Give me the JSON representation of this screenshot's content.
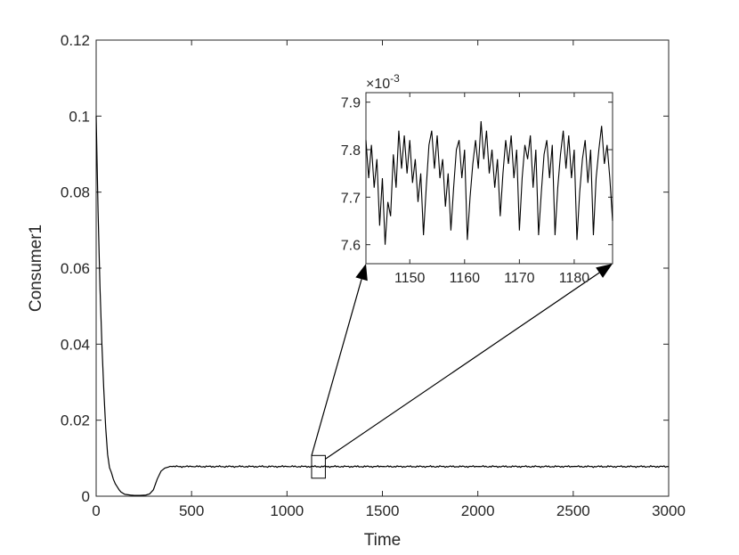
{
  "chart_data": [
    {
      "type": "line",
      "title": "",
      "xlabel": "Time",
      "ylabel": "Consumer1",
      "xlim": [
        0,
        3000
      ],
      "ylim": [
        0,
        0.12
      ],
      "xticks": [
        0,
        500,
        1000,
        1500,
        2000,
        2500,
        3000
      ],
      "xtick_labels": [
        "0",
        "500",
        "1000",
        "1500",
        "2000",
        "2500",
        "3000"
      ],
      "yticks": [
        0,
        0.02,
        0.04,
        0.06,
        0.08,
        0.1,
        0.12
      ],
      "ytick_labels": [
        "0",
        "0.02",
        "0.04",
        "0.06",
        "0.08",
        "0.1",
        "0.12"
      ],
      "grid": false,
      "legend": "none",
      "line_color": "#000000",
      "series": [
        {
          "x": [
            0,
            10,
            20,
            30,
            40,
            50,
            60,
            70,
            80,
            90,
            100,
            110,
            120,
            130,
            150,
            180,
            200,
            230,
            260,
            280,
            300,
            320,
            340,
            360,
            380,
            400,
            500,
            1000,
            1500,
            2000,
            2500,
            3000
          ],
          "y": [
            0.1,
            0.075,
            0.055,
            0.04,
            0.028,
            0.018,
            0.011,
            0.0075,
            0.0062,
            0.0045,
            0.0033,
            0.0025,
            0.0017,
            0.0011,
            0.0005,
            0.0003,
            0.0002,
            0.0002,
            0.0003,
            0.0006,
            0.0017,
            0.0045,
            0.0066,
            0.0074,
            0.0077,
            0.0078,
            0.0078,
            0.0078,
            0.0078,
            0.0078,
            0.0078,
            0.0078
          ]
        }
      ],
      "zoom_region": {
        "x": [
          1143,
          1187
        ],
        "y": [
          0.00755,
          0.0079
        ]
      }
    },
    {
      "type": "line",
      "title": "",
      "xlabel": "",
      "ylabel": "",
      "xlim": [
        1142,
        1187
      ],
      "ylim": [
        7.56,
        7.92
      ],
      "y_exponent_label": "×10",
      "y_exponent_power": "-3",
      "xticks": [
        1150,
        1160,
        1170,
        1180
      ],
      "xtick_labels": [
        "1150",
        "1160",
        "1170",
        "1180"
      ],
      "yticks": [
        7.6,
        7.7,
        7.8,
        7.9
      ],
      "ytick_labels": [
        "7.6",
        "7.7",
        "7.8",
        "7.9"
      ],
      "grid": false,
      "legend": "none",
      "line_color": "#000000",
      "series": [
        {
          "x": [
            1142,
            1142.5,
            1143,
            1143.5,
            1144,
            1144.5,
            1145,
            1145.5,
            1146,
            1146.5,
            1147,
            1147.5,
            1148,
            1148.5,
            1149,
            1149.5,
            1150,
            1150.5,
            1151,
            1151.5,
            1152,
            1152.5,
            1153,
            1153.5,
            1154,
            1154.5,
            1155,
            1155.5,
            1156,
            1156.5,
            1157,
            1157.5,
            1158,
            1158.5,
            1159,
            1159.5,
            1160,
            1160.5,
            1161,
            1161.5,
            1162,
            1162.5,
            1163,
            1163.5,
            1164,
            1164.5,
            1165,
            1165.5,
            1166,
            1166.5,
            1167,
            1167.5,
            1168,
            1168.5,
            1169,
            1169.5,
            1170,
            1170.5,
            1171,
            1171.5,
            1172,
            1172.5,
            1173,
            1173.5,
            1174,
            1174.5,
            1175,
            1175.5,
            1176,
            1176.5,
            1177,
            1177.5,
            1178,
            1178.5,
            1179,
            1179.5,
            1180,
            1180.5,
            1181,
            1181.5,
            1182,
            1182.5,
            1183,
            1183.5,
            1184,
            1184.5,
            1185,
            1185.5,
            1186,
            1186.5,
            1187
          ],
          "y": [
            7.82,
            7.74,
            7.81,
            7.72,
            7.78,
            7.64,
            7.74,
            7.6,
            7.69,
            7.66,
            7.79,
            7.72,
            7.84,
            7.76,
            7.83,
            7.75,
            7.82,
            7.73,
            7.78,
            7.69,
            7.75,
            7.62,
            7.72,
            7.81,
            7.84,
            7.76,
            7.83,
            7.74,
            7.78,
            7.68,
            7.75,
            7.63,
            7.72,
            7.8,
            7.82,
            7.74,
            7.8,
            7.61,
            7.7,
            7.77,
            7.82,
            7.76,
            7.86,
            7.78,
            7.84,
            7.75,
            7.8,
            7.72,
            7.78,
            7.66,
            7.75,
            7.82,
            7.77,
            7.83,
            7.74,
            7.8,
            7.63,
            7.74,
            7.81,
            7.78,
            7.83,
            7.72,
            7.8,
            7.62,
            7.71,
            7.79,
            7.82,
            7.74,
            7.81,
            7.62,
            7.72,
            7.79,
            7.84,
            7.76,
            7.83,
            7.74,
            7.8,
            7.61,
            7.71,
            7.78,
            7.82,
            7.73,
            7.8,
            7.62,
            7.74,
            7.8,
            7.85,
            7.77,
            7.81,
            7.74,
            7.65
          ]
        }
      ]
    }
  ]
}
